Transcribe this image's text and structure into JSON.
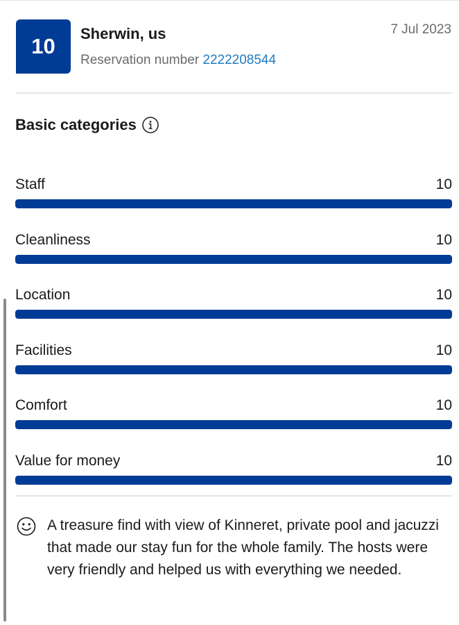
{
  "review": {
    "score": "10",
    "reviewer": "Sherwin, us",
    "reservation_label": "Reservation number",
    "reservation_number": "2222208544",
    "date": "7 Jul 2023"
  },
  "categories": {
    "title": "Basic categories",
    "items": [
      {
        "label": "Staff",
        "score": "10",
        "fill": 1.0
      },
      {
        "label": "Cleanliness",
        "score": "10",
        "fill": 1.0
      },
      {
        "label": "Location",
        "score": "10",
        "fill": 1.0
      },
      {
        "label": "Facilities",
        "score": "10",
        "fill": 1.0
      },
      {
        "label": "Comfort",
        "score": "10",
        "fill": 1.0
      },
      {
        "label": "Value for money",
        "score": "10",
        "fill": 1.0
      }
    ]
  },
  "comment": {
    "icon": "smile-icon",
    "text": "A treasure find with view of Kinneret, private pool and jacuzzi that made our stay fun for the whole family. The hosts were very friendly and helped us with everything we needed."
  },
  "colors": {
    "brand": "#003b95",
    "link": "#1f7bc1",
    "muted": "#6b6b6b"
  }
}
